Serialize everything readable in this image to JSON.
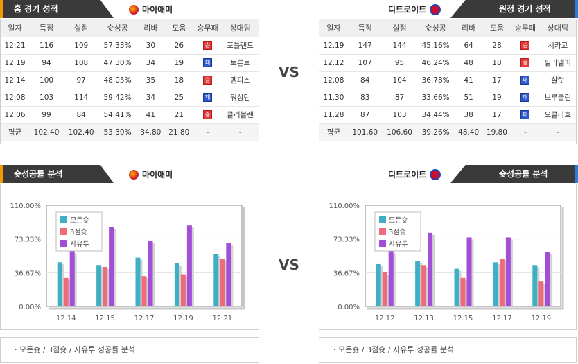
{
  "vs_label": "VS",
  "home": {
    "header": "홈 경기 성적",
    "team": "마이애미",
    "columns": [
      "일자",
      "득점",
      "실점",
      "슛성공",
      "리바",
      "도움",
      "승무패",
      "상대팀"
    ],
    "rows": [
      [
        "12.21",
        "116",
        "109",
        "57.33%",
        "30",
        "26",
        "승",
        "포틀랜드"
      ],
      [
        "12.19",
        "94",
        "108",
        "47.30%",
        "34",
        "19",
        "패",
        "토론토"
      ],
      [
        "12.14",
        "100",
        "97",
        "48.05%",
        "35",
        "18",
        "승",
        "멤피스"
      ],
      [
        "12.08",
        "103",
        "114",
        "59.42%",
        "34",
        "25",
        "패",
        "워싱턴"
      ],
      [
        "12.06",
        "99",
        "84",
        "54.41%",
        "41",
        "21",
        "승",
        "클리블랜"
      ]
    ],
    "avg": [
      "평균",
      "102.40",
      "102.40",
      "53.30%",
      "34.80",
      "21.80",
      "-",
      "-"
    ]
  },
  "away": {
    "header": "원정 경기 성적",
    "team": "디트로이트",
    "columns": [
      "일자",
      "득점",
      "실점",
      "슛성공",
      "리바",
      "도움",
      "승무패",
      "상대팀"
    ],
    "rows": [
      [
        "12.19",
        "147",
        "144",
        "45.16%",
        "64",
        "28",
        "승",
        "시카고"
      ],
      [
        "12.12",
        "107",
        "95",
        "46.24%",
        "48",
        "18",
        "승",
        "필라델피"
      ],
      [
        "12.08",
        "84",
        "104",
        "36.78%",
        "41",
        "17",
        "패",
        "샬럿"
      ],
      [
        "11.30",
        "83",
        "87",
        "33.66%",
        "51",
        "19",
        "패",
        "브루클린"
      ],
      [
        "11.28",
        "87",
        "103",
        "34.44%",
        "38",
        "17",
        "패",
        "오클라호"
      ]
    ],
    "avg": [
      "평균",
      "101.60",
      "106.60",
      "39.26%",
      "48.40",
      "19.80",
      "-",
      "-"
    ]
  },
  "home_chart_header": "슛성공률 분석",
  "home_chart_team": "마이애미",
  "away_chart_header": "슛성공률 분석",
  "away_chart_team": "디트로이트",
  "note_text": "· 모든슛 / 3점슛 / 자유투 성공률 분석",
  "colors": {
    "all": "#3fb0c4",
    "three": "#ee6b7a",
    "ft": "#a24fd8"
  },
  "chart_data": [
    {
      "type": "bar",
      "categories": [
        "12.14",
        "12.15",
        "12.17",
        "12.19",
        "12.21"
      ],
      "ylim": [
        0,
        110
      ],
      "yticks": [
        "0.00%",
        "36.67%",
        "73.33%",
        "110.00%"
      ],
      "legend": "top-left",
      "series": [
        {
          "name": "모든슛",
          "values": [
            48,
            45,
            53,
            47,
            57
          ]
        },
        {
          "name": "3점슛",
          "values": [
            31,
            43,
            33,
            35,
            52
          ]
        },
        {
          "name": "자유투",
          "values": [
            60,
            86,
            71,
            88,
            69
          ]
        }
      ]
    },
    {
      "type": "bar",
      "categories": [
        "12.12",
        "12.13",
        "12.15",
        "12.17",
        "12.19"
      ],
      "ylim": [
        0,
        110
      ],
      "yticks": [
        "0.00%",
        "36.67%",
        "73.33%",
        "110.00%"
      ],
      "legend": "top-left",
      "series": [
        {
          "name": "모든슛",
          "values": [
            46,
            49,
            41,
            48,
            45
          ]
        },
        {
          "name": "3점슛",
          "values": [
            37,
            45,
            31,
            52,
            27
          ]
        },
        {
          "name": "자유투",
          "values": [
            60,
            80,
            75,
            75,
            59
          ]
        }
      ]
    }
  ]
}
